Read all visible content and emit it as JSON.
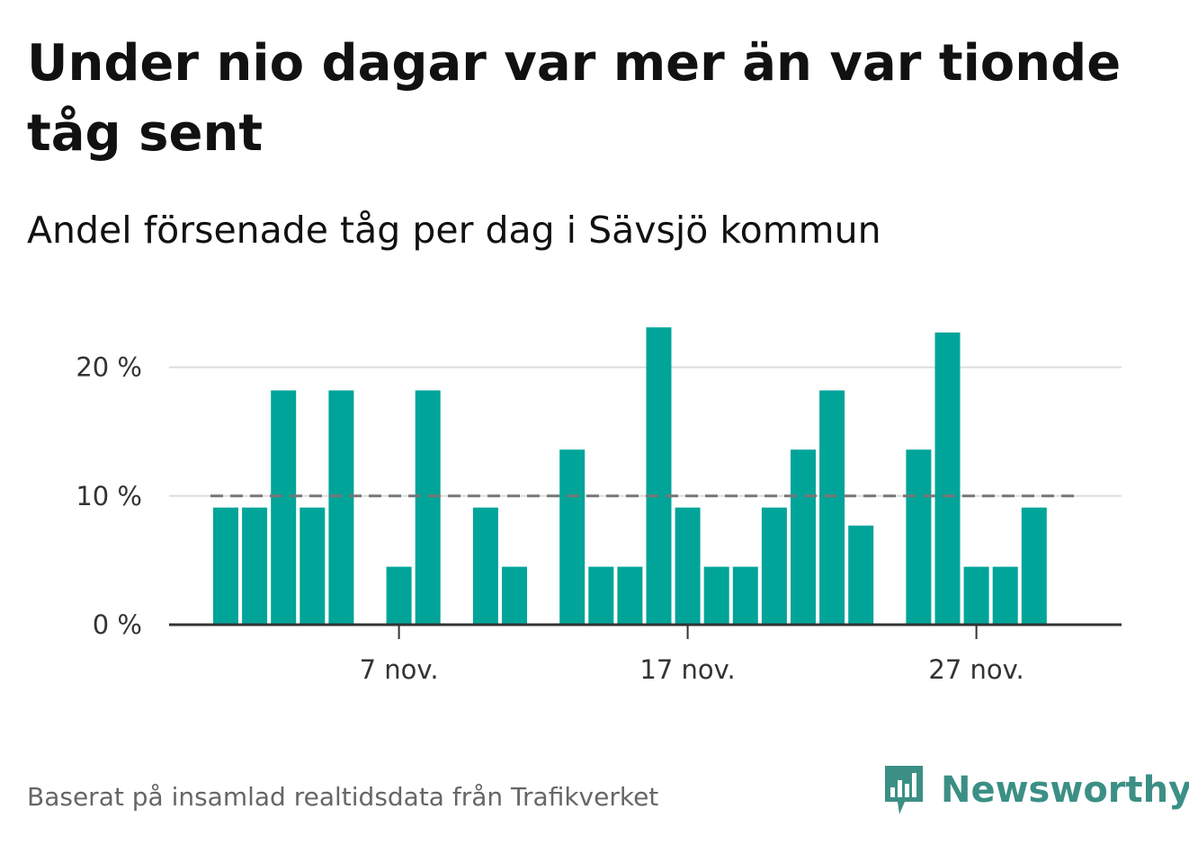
{
  "header": {
    "title": "Under nio dagar var mer än var tionde tåg sent",
    "subtitle": "Andel försenade tåg per dag i Sävsjö kommun"
  },
  "footer": {
    "source": "Baserat på insamlad realtidsdata från Trafikverket",
    "brand": "Newsworthy"
  },
  "colors": {
    "bar": "#00a499",
    "grid": "#dddddd",
    "axis": "#333333",
    "reference": "#777777",
    "brand": "#3c8f85"
  },
  "chart_data": {
    "type": "bar",
    "x": [
      "2023-11-01",
      "2023-11-02",
      "2023-11-03",
      "2023-11-04",
      "2023-11-05",
      "2023-11-06",
      "2023-11-07",
      "2023-11-08",
      "2023-11-09",
      "2023-11-10",
      "2023-11-11",
      "2023-11-12",
      "2023-11-13",
      "2023-11-14",
      "2023-11-15",
      "2023-11-16",
      "2023-11-17",
      "2023-11-18",
      "2023-11-19",
      "2023-11-20",
      "2023-11-21",
      "2023-11-22",
      "2023-11-23",
      "2023-11-24",
      "2023-11-25",
      "2023-11-26",
      "2023-11-27",
      "2023-11-28",
      "2023-11-29",
      "2023-11-30"
    ],
    "values": [
      9.1,
      9.1,
      18.2,
      9.1,
      18.2,
      0,
      4.5,
      18.2,
      0,
      9.1,
      4.5,
      0,
      13.6,
      4.5,
      4.5,
      23.1,
      9.1,
      4.5,
      4.5,
      9.1,
      13.6,
      18.2,
      7.7,
      0,
      13.6,
      22.7,
      4.5,
      4.5,
      9.1,
      0
    ],
    "ylim": [
      0,
      25
    ],
    "y_ticks": [
      0,
      10,
      20
    ],
    "y_tick_labels": [
      "0 %",
      "10 %",
      "20 %"
    ],
    "x_ticks": [
      {
        "index": 6,
        "label": "7 nov."
      },
      {
        "index": 16,
        "label": "17 nov."
      },
      {
        "index": 26,
        "label": "27 nov."
      }
    ],
    "reference_line": {
      "value": 10
    },
    "grid": true,
    "legend": "none"
  }
}
